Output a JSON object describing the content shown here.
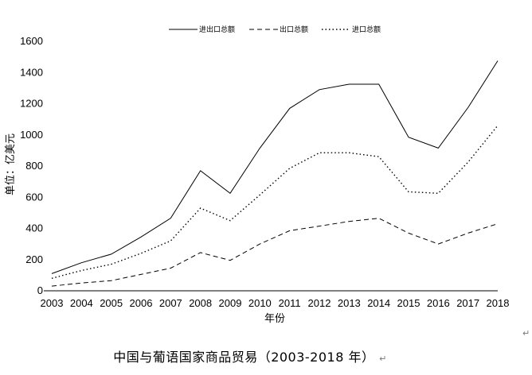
{
  "chart_data": {
    "type": "line",
    "title": "",
    "xlabel": "年份",
    "ylabel": "单位：亿美元",
    "x": [
      "2003",
      "2004",
      "2005",
      "2006",
      "2007",
      "2008",
      "2009",
      "2010",
      "2011",
      "2012",
      "2013",
      "2014",
      "2015",
      "2016",
      "2017",
      "2018"
    ],
    "ylim": [
      0,
      1600
    ],
    "yticks": [
      0,
      200,
      400,
      600,
      800,
      1000,
      1200,
      1400,
      1600
    ],
    "grid": false,
    "legend_position": "top-center",
    "series": [
      {
        "name": "进出口总额",
        "style": "solid",
        "values": [
          110,
          180,
          235,
          345,
          465,
          770,
          625,
          915,
          1170,
          1290,
          1325,
          1325,
          985,
          915,
          1175,
          1475
        ]
      },
      {
        "name": "出口总额",
        "style": "dashed",
        "values": [
          30,
          50,
          65,
          105,
          145,
          245,
          195,
          300,
          385,
          415,
          445,
          465,
          370,
          300,
          370,
          430
        ]
      },
      {
        "name": "进口总额",
        "style": "dotted",
        "values": [
          80,
          130,
          170,
          240,
          320,
          530,
          450,
          615,
          785,
          885,
          885,
          860,
          635,
          625,
          825,
          1060
        ]
      }
    ]
  },
  "caption": "中国与葡语国家商品贸易（2003-2018 年）",
  "paragraph_mark": "↵"
}
